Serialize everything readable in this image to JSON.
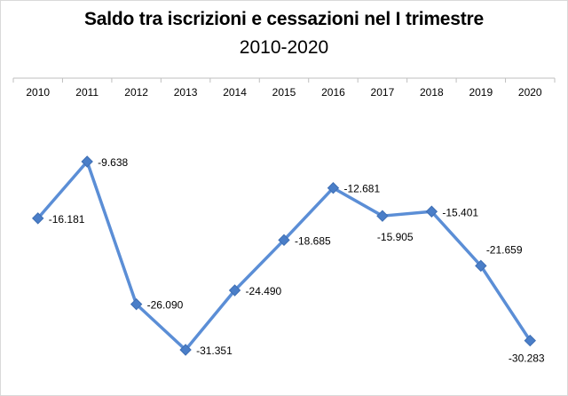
{
  "chart_data": {
    "type": "line",
    "title": "Saldo tra iscrizioni e cessazioni nel I trimestre",
    "subtitle": "2010-2020",
    "categories": [
      "2010",
      "2011",
      "2012",
      "2013",
      "2014",
      "2015",
      "2016",
      "2017",
      "2018",
      "2019",
      "2020"
    ],
    "series": [
      {
        "values": [
          -16181,
          -9638,
          -26090,
          -31351,
          -24490,
          -18685,
          -12681,
          -15905,
          -15401,
          -21659,
          -30283
        ],
        "data_labels": [
          "-16.181",
          "-9.638",
          "-26.090",
          "-31.351",
          "-24.490",
          "-18.685",
          "-12.681",
          "-15.905",
          "-15.401",
          "-21.659",
          "-30.283"
        ],
        "color": "#5B8ED6",
        "marker": "diamond"
      }
    ],
    "x_axis_position": "top",
    "grid": false,
    "legend": "none"
  }
}
